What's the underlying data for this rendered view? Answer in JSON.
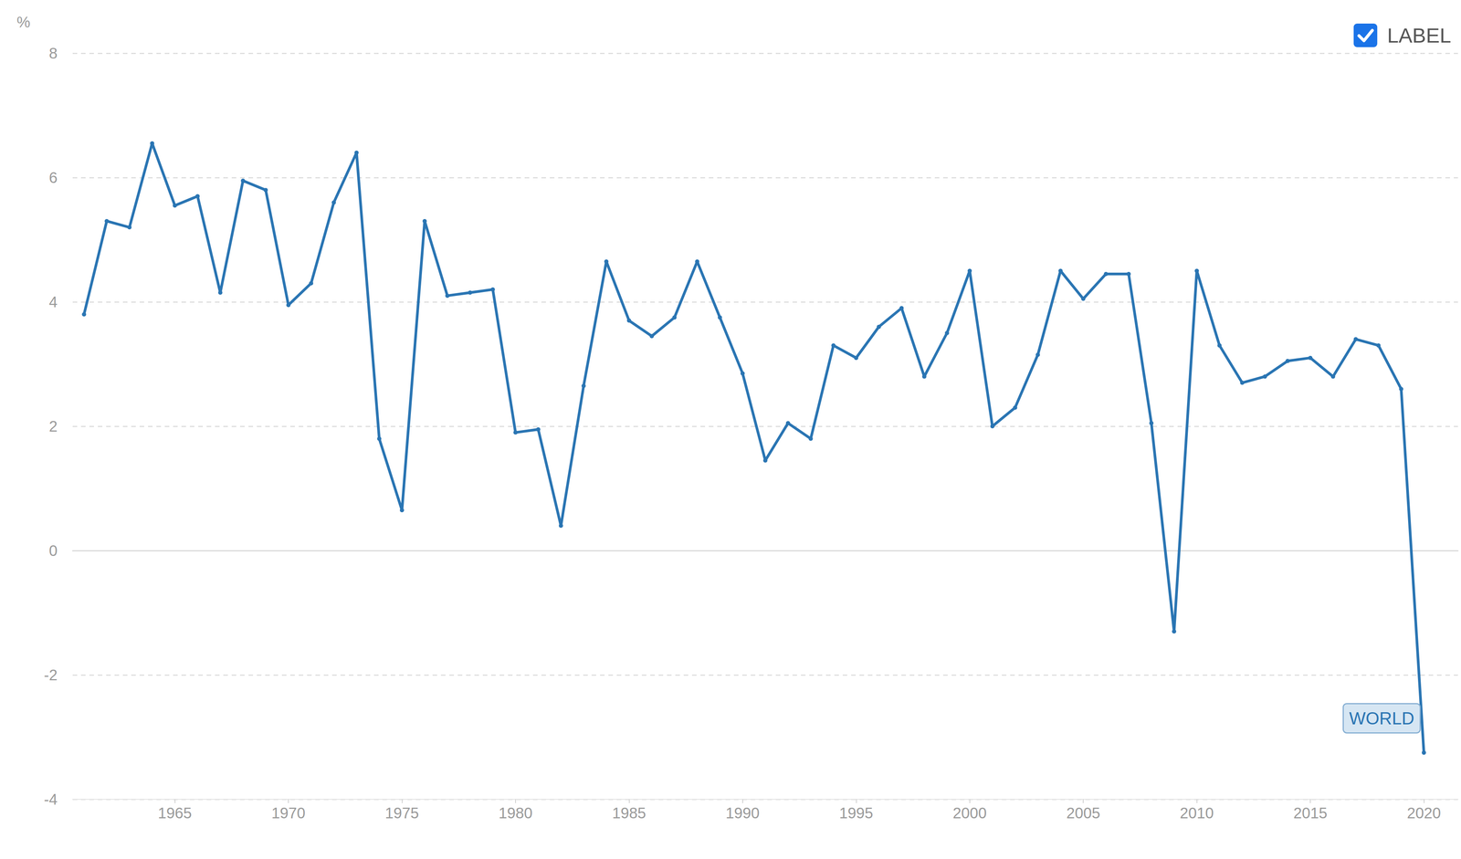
{
  "chart_data": {
    "type": "line",
    "y_label": "%",
    "checkbox_label": "LABEL",
    "x": [
      1961,
      1962,
      1963,
      1964,
      1965,
      1966,
      1967,
      1968,
      1969,
      1970,
      1971,
      1972,
      1973,
      1974,
      1975,
      1976,
      1977,
      1978,
      1979,
      1980,
      1981,
      1982,
      1983,
      1984,
      1985,
      1986,
      1987,
      1988,
      1989,
      1990,
      1991,
      1992,
      1993,
      1994,
      1995,
      1996,
      1997,
      1998,
      1999,
      2000,
      2001,
      2002,
      2003,
      2004,
      2005,
      2006,
      2007,
      2008,
      2009,
      2010,
      2011,
      2012,
      2013,
      2014,
      2015,
      2016,
      2017,
      2018,
      2019,
      2020
    ],
    "series": [
      {
        "name": "WORLD",
        "color": "#2a75b3",
        "marker": "circle",
        "line_style": "solid",
        "values": [
          3.8,
          5.3,
          5.2,
          6.55,
          5.55,
          5.7,
          4.15,
          5.95,
          5.8,
          3.95,
          4.3,
          5.6,
          6.4,
          1.8,
          0.65,
          5.3,
          4.1,
          4.15,
          4.2,
          1.9,
          1.95,
          0.4,
          2.65,
          4.65,
          3.7,
          3.45,
          3.75,
          4.65,
          3.75,
          2.85,
          1.45,
          2.05,
          1.8,
          3.3,
          3.1,
          3.6,
          3.9,
          2.8,
          3.5,
          4.5,
          2.0,
          2.3,
          3.15,
          4.5,
          4.05,
          4.45,
          4.45,
          2.05,
          -1.3,
          4.5,
          3.3,
          2.7,
          2.8,
          3.05,
          3.1,
          2.8,
          3.4,
          3.3,
          2.6,
          -3.25
        ]
      }
    ],
    "xlim": [
      1960.5,
      2021.5
    ],
    "xticks": [
      1965,
      1970,
      1975,
      1980,
      1985,
      1990,
      1995,
      2000,
      2005,
      2010,
      2015,
      2020
    ],
    "ylim": [
      -4,
      8
    ],
    "yticks": [
      -4,
      -2,
      0,
      2,
      4,
      6,
      8
    ],
    "grid": true
  }
}
